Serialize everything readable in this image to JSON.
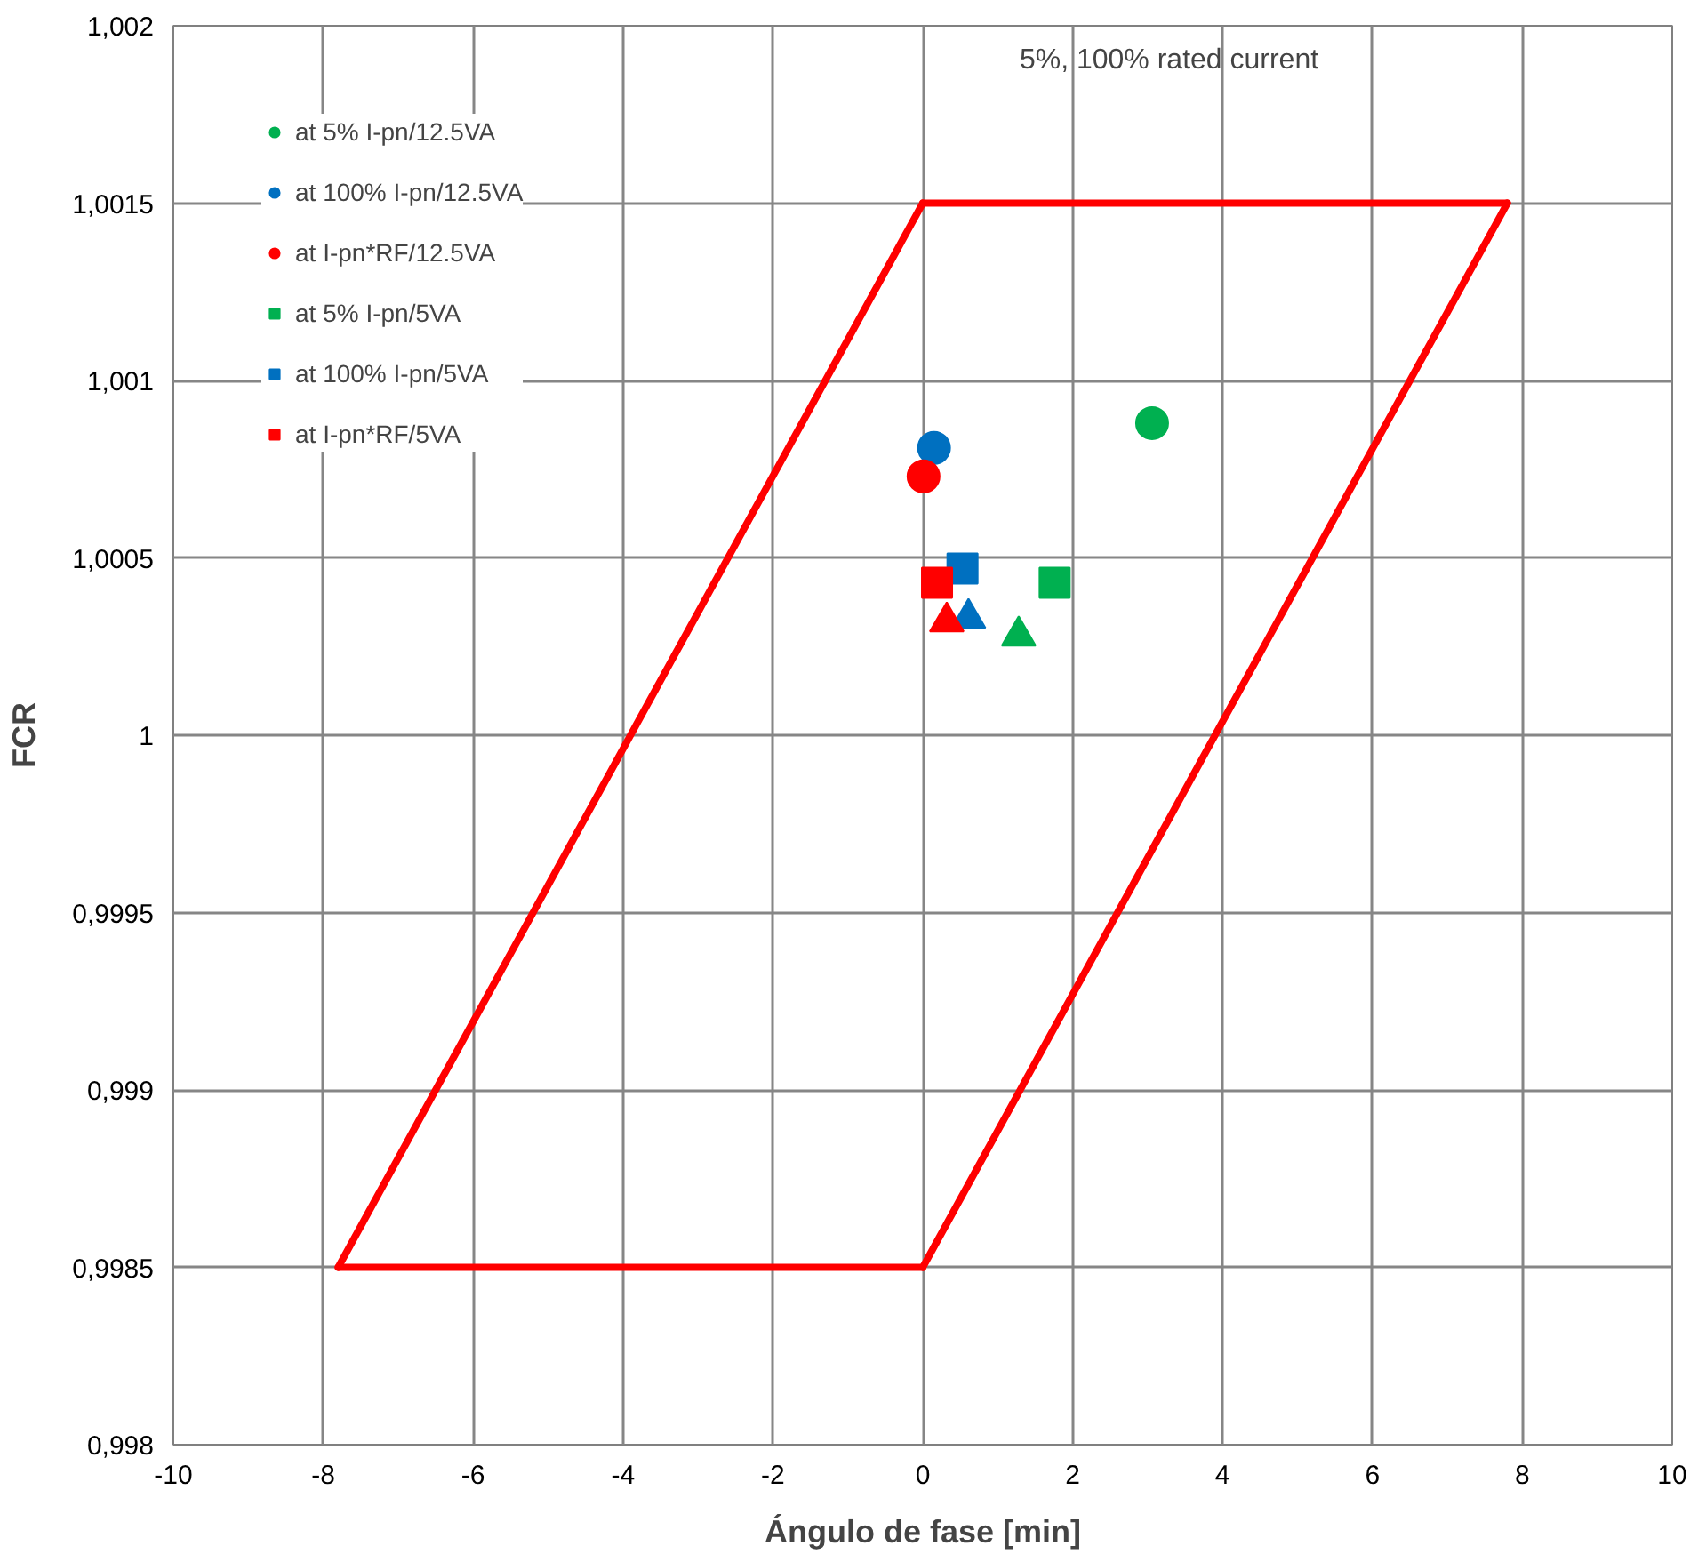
{
  "chart_data": {
    "type": "scatter",
    "xlabel": "Ángulo de fase [min]",
    "ylabel": "FCR",
    "xlim": [
      -10,
      10
    ],
    "ylim": [
      0.998,
      1.002
    ],
    "xticks": [
      -10,
      -8,
      -6,
      -4,
      -2,
      0,
      2,
      4,
      6,
      8,
      10
    ],
    "yticks": [
      {
        "value": 0.998,
        "label": "0,998"
      },
      {
        "value": 0.9985,
        "label": "0,9985"
      },
      {
        "value": 0.999,
        "label": "0,999"
      },
      {
        "value": 0.9995,
        "label": "0,9995"
      },
      1,
      {
        "value": 1.0005,
        "label": "1,0005"
      },
      {
        "value": 1.001,
        "label": "1,001"
      },
      {
        "value": 1.0015,
        "label": "1,0015"
      },
      {
        "value": 1.002,
        "label": "1,002"
      }
    ],
    "grid": true,
    "legend": "top left",
    "series": [
      {
        "type": "line",
        "color": "#ff0000",
        "x": [
          -7.8,
          0
        ],
        "values": [
          0.9985,
          1.0015
        ]
      },
      {
        "type": "line",
        "color": "#ff0000",
        "x": [
          0,
          7.8
        ],
        "values": [
          1.0015,
          1.0015
        ]
      },
      {
        "type": "line",
        "color": "#ff0000",
        "x": [
          0,
          7.8
        ],
        "values": [
          0.9985,
          1.0015
        ]
      },
      {
        "type": "line",
        "color": "#ff0000",
        "x": [
          -7.8,
          0
        ],
        "values": [
          0.9985,
          0.9985
        ]
      },
      {
        "name": "at 5% I-pn/12.5VA",
        "marker": "circle",
        "color": "#00b050",
        "x": [
          3.06
        ],
        "values": [
          1.00088
        ]
      },
      {
        "name": "at 100% I-pn/12.5VA",
        "marker": "circle",
        "color": "#0070c0",
        "x": [
          0.15
        ],
        "values": [
          1.00081
        ]
      },
      {
        "name": "at I-pn*RF/12.5VA",
        "marker": "circle",
        "color": "#ff0000",
        "x": [
          0.01
        ],
        "values": [
          1.00073
        ]
      },
      {
        "name": "at 5% I-pn/5VA",
        "marker": "square",
        "color": "#00b050",
        "x": [
          1.76
        ],
        "values": [
          1.00043
        ]
      },
      {
        "name": "at 100% I-pn/5VA",
        "marker": "square",
        "color": "#0070c0",
        "x": [
          0.53
        ],
        "values": [
          1.00047
        ]
      },
      {
        "name": "at I-pn*RF/5VA",
        "marker": "square",
        "color": "#ff0000",
        "x": [
          0.19
        ],
        "values": [
          1.00043
        ]
      },
      {
        "marker": "triangle",
        "color": "#00b050",
        "x": [
          1.28
        ],
        "values": [
          1.00028
        ]
      },
      {
        "marker": "triangle",
        "color": "#0070c0",
        "x": [
          0.61
        ],
        "values": [
          1.00033
        ]
      },
      {
        "marker": "triangle",
        "color": "#ff0000",
        "x": [
          0.32
        ],
        "values": [
          1.00032
        ]
      }
    ],
    "annotations": [
      "5%, 100% rated current"
    ]
  }
}
